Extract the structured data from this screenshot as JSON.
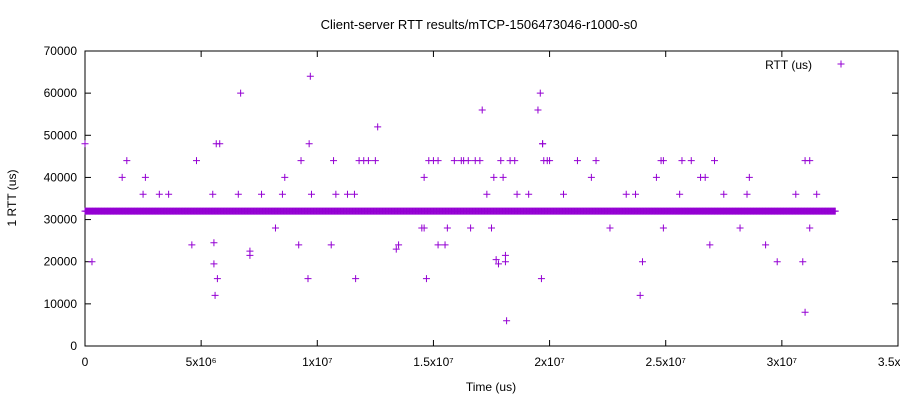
{
  "chart_data": {
    "type": "scatter",
    "title": "Client-server RTT results/mTCP-1506473046-r1000-s0",
    "xlabel": "Time (us)",
    "ylabel": "1 RTT (us)",
    "xlim": [
      0,
      35000000
    ],
    "ylim": [
      0,
      70000
    ],
    "x_ticks": [
      0,
      5000000,
      10000000,
      15000000,
      20000000,
      25000000,
      30000000,
      35000000
    ],
    "x_tick_labels": [
      "0",
      "5x10⁶",
      "1x10⁷",
      "1.5x10⁷",
      "2x10⁷",
      "2.5x10⁷",
      "3x10⁷",
      "3.5x10⁷"
    ],
    "y_ticks": [
      0,
      10000,
      20000,
      30000,
      40000,
      50000,
      60000,
      70000
    ],
    "y_tick_labels": [
      "0",
      "10000",
      "20000",
      "30000",
      "40000",
      "50000",
      "60000",
      "70000"
    ],
    "grid": false,
    "legend_position": "top-right",
    "marker_color": "#9400d3",
    "series": [
      {
        "name": "RTT (us)",
        "baseline": {
          "y": 32000,
          "x_start": 0,
          "x_end": 32300000,
          "step": 32300
        },
        "points": [
          [
            0,
            48000
          ],
          [
            300000,
            20000
          ],
          [
            1600000,
            40000
          ],
          [
            1800000,
            44000
          ],
          [
            2500000,
            36000
          ],
          [
            2600000,
            40000
          ],
          [
            3200000,
            36000
          ],
          [
            3600000,
            36000
          ],
          [
            4600000,
            24000
          ],
          [
            4800000,
            44000
          ],
          [
            5500000,
            36000
          ],
          [
            5550000,
            24500
          ],
          [
            5550000,
            19500
          ],
          [
            5600000,
            12000
          ],
          [
            5650000,
            48000
          ],
          [
            5700000,
            16000
          ],
          [
            5800000,
            48000
          ],
          [
            6600000,
            36000
          ],
          [
            6700000,
            60000
          ],
          [
            7100000,
            21500
          ],
          [
            7100000,
            22500
          ],
          [
            7600000,
            36000
          ],
          [
            8200000,
            28000
          ],
          [
            8500000,
            36000
          ],
          [
            8600000,
            40000
          ],
          [
            9200000,
            24000
          ],
          [
            9300000,
            44000
          ],
          [
            9600000,
            16000
          ],
          [
            9650000,
            48000
          ],
          [
            9700000,
            64000
          ],
          [
            9750000,
            36000
          ],
          [
            10600000,
            24000
          ],
          [
            10700000,
            44000
          ],
          [
            10800000,
            36000
          ],
          [
            11300000,
            36000
          ],
          [
            11600000,
            36000
          ],
          [
            11650000,
            16000
          ],
          [
            11800000,
            44000
          ],
          [
            12000000,
            44000
          ],
          [
            12200000,
            44000
          ],
          [
            12500000,
            44000
          ],
          [
            12600000,
            52000
          ],
          [
            13400000,
            23000
          ],
          [
            13500000,
            24000
          ],
          [
            14500000,
            28000
          ],
          [
            14600000,
            28000
          ],
          [
            14600000,
            40000
          ],
          [
            14700000,
            16000
          ],
          [
            14800000,
            44000
          ],
          [
            15000000,
            44000
          ],
          [
            15200000,
            24000
          ],
          [
            15200000,
            44000
          ],
          [
            15500000,
            24000
          ],
          [
            15600000,
            28000
          ],
          [
            15900000,
            44000
          ],
          [
            16200000,
            44000
          ],
          [
            16300000,
            44000
          ],
          [
            16500000,
            44000
          ],
          [
            16600000,
            28000
          ],
          [
            16800000,
            44000
          ],
          [
            17000000,
            44000
          ],
          [
            17100000,
            56000
          ],
          [
            17300000,
            36000
          ],
          [
            17500000,
            28000
          ],
          [
            17600000,
            40000
          ],
          [
            17700000,
            20500
          ],
          [
            17800000,
            19500
          ],
          [
            17900000,
            44000
          ],
          [
            18000000,
            40000
          ],
          [
            18100000,
            21500
          ],
          [
            18100000,
            20000
          ],
          [
            18150000,
            6000
          ],
          [
            18300000,
            44000
          ],
          [
            18500000,
            44000
          ],
          [
            18600000,
            36000
          ],
          [
            19100000,
            36000
          ],
          [
            19500000,
            56000
          ],
          [
            19600000,
            60000
          ],
          [
            19650000,
            16000
          ],
          [
            19700000,
            48000
          ],
          [
            19700000,
            48000
          ],
          [
            19750000,
            44000
          ],
          [
            19900000,
            44000
          ],
          [
            20000000,
            44000
          ],
          [
            20600000,
            36000
          ],
          [
            21200000,
            44000
          ],
          [
            21800000,
            40000
          ],
          [
            22000000,
            44000
          ],
          [
            22600000,
            28000
          ],
          [
            23300000,
            36000
          ],
          [
            23700000,
            36000
          ],
          [
            23900000,
            12000
          ],
          [
            24000000,
            20000
          ],
          [
            24600000,
            40000
          ],
          [
            24800000,
            44000
          ],
          [
            24900000,
            44000
          ],
          [
            24900000,
            28000
          ],
          [
            25600000,
            36000
          ],
          [
            25700000,
            44000
          ],
          [
            26100000,
            44000
          ],
          [
            26500000,
            40000
          ],
          [
            26700000,
            40000
          ],
          [
            26900000,
            24000
          ],
          [
            27100000,
            44000
          ],
          [
            27500000,
            36000
          ],
          [
            28200000,
            28000
          ],
          [
            28500000,
            36000
          ],
          [
            28600000,
            40000
          ],
          [
            29300000,
            24000
          ],
          [
            29800000,
            20000
          ],
          [
            30600000,
            36000
          ],
          [
            30900000,
            20000
          ],
          [
            31000000,
            8000
          ],
          [
            31000000,
            44000
          ],
          [
            31200000,
            44000
          ],
          [
            31200000,
            28000
          ],
          [
            31500000,
            36000
          ]
        ]
      }
    ]
  }
}
